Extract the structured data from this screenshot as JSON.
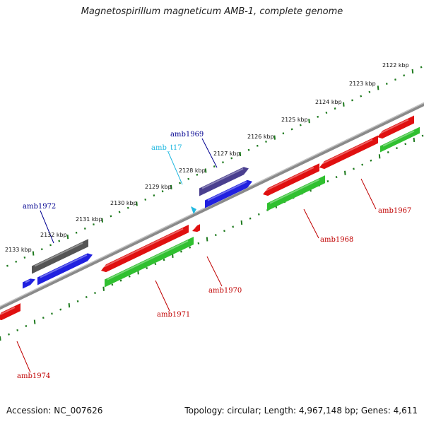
{
  "title": "Magnetospirillum magneticum AMB-1, complete genome",
  "accession": "Accession: NC_007626",
  "topology": "Topology: circular; Length: 4,967,148 bp; Genes: 4,611",
  "colors": {
    "backbone": "#8a8a8a",
    "tick": "#1e7a1e",
    "label_red": "#c00000",
    "label_blue": "#000090",
    "label_cyan": "#20b8e0",
    "forward_gene": "#2020e0",
    "reverse_gene": "#e01010",
    "rna_gene": "#30c030",
    "pseudo_gene": "#555555",
    "purple_gene": "#4a3f8f"
  },
  "ticks": [
    "2122 kbp",
    "2123 kbp",
    "2124 kbp",
    "2125 kbp",
    "2126 kbp",
    "2127 kbp",
    "2128 kbp",
    "2129 kbp",
    "2130 kbp",
    "2131 kbp",
    "2132 kbp",
    "2133 kbp"
  ],
  "genes": {
    "amb1967": "amb1967",
    "amb1968": "amb1968",
    "amb1969": "amb1969",
    "amb1970": "amb1970",
    "amb1971": "amb1971",
    "amb1972": "amb1972",
    "amb1974": "amb1974",
    "amb_t17": "amb_t17"
  }
}
